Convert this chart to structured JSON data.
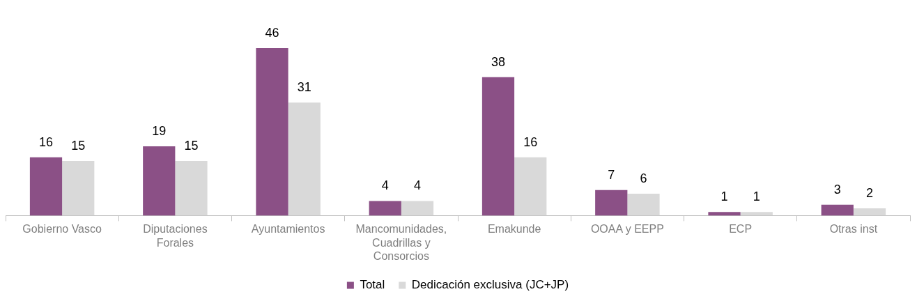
{
  "chart_data": {
    "type": "bar",
    "categories": [
      "Gobierno Vasco",
      "Diputaciones Forales",
      "Ayuntamientos",
      "Mancomunidades, Cuadrillas y Consorcios",
      "Emakunde",
      "OOAA y EEPP",
      "ECP",
      "Otras inst"
    ],
    "series": [
      {
        "name": "Total",
        "color": "#8b5086",
        "values": [
          16,
          19,
          46,
          4,
          38,
          7,
          1,
          3
        ]
      },
      {
        "name": "Dedicación exclusiva (JC+JP)",
        "color": "#d9d9d9",
        "values": [
          15,
          15,
          31,
          4,
          16,
          6,
          1,
          2
        ]
      }
    ],
    "data_labels": true,
    "legend": "bottom",
    "grid": false,
    "tick_labels": "x"
  }
}
